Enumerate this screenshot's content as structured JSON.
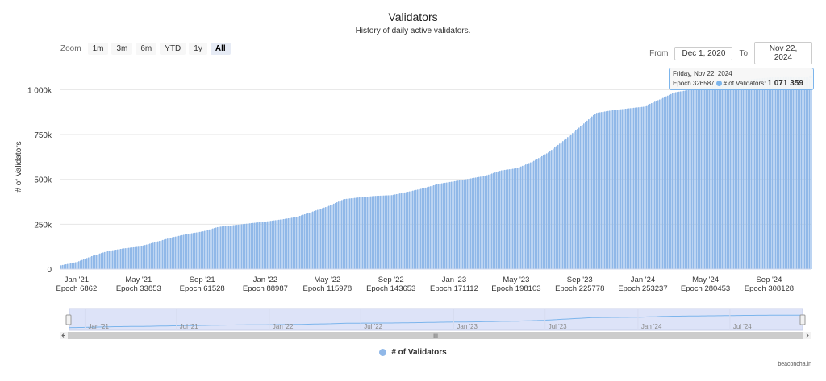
{
  "header": {
    "title": "Validators",
    "subtitle": "History of daily active validators."
  },
  "zoom": {
    "label": "Zoom",
    "buttons": [
      "1m",
      "3m",
      "6m",
      "YTD",
      "1y",
      "All"
    ],
    "active": "All"
  },
  "range": {
    "from_label": "From",
    "from_value": "Dec 1, 2020",
    "to_label": "To",
    "to_value": "Nov 22, 2024"
  },
  "tooltip": {
    "date": "Friday, Nov 22, 2024",
    "epoch": "Epoch 326587",
    "series": "# of Validators:",
    "value": "1 071 359"
  },
  "legend": {
    "label": "# of Validators"
  },
  "footer": {
    "source": "beaconcha.in"
  },
  "navigator": {
    "labels": [
      "Jan '21",
      "Jul '21",
      "Jan '22",
      "Jul '22",
      "Jan '23",
      "Jul '23",
      "Jan '24",
      "Jul '24"
    ],
    "scroll_grip": "III"
  },
  "colors": {
    "bar": "#90b8e8",
    "grid": "#e6e6e6",
    "navigator_fill": "#dde3f8",
    "tooltip_border": "#7cb5ec"
  },
  "chart_data": {
    "type": "bar",
    "title": "Validators",
    "subtitle": "History of daily active validators.",
    "ylabel": "# of Validators",
    "xlabel": "",
    "ylim": [
      0,
      1150000
    ],
    "y_ticks": [
      0,
      250000,
      500000,
      750000,
      1000000
    ],
    "y_tick_labels": [
      "0",
      "250k",
      "500k",
      "750k",
      "1 000k"
    ],
    "x_range": [
      "2020-12-01",
      "2024-11-22"
    ],
    "x_ticks": [
      {
        "date": "2021-01-01",
        "label": "Jan '21",
        "epoch": "Epoch 6862"
      },
      {
        "date": "2021-05-01",
        "label": "May '21",
        "epoch": "Epoch 33853"
      },
      {
        "date": "2021-09-01",
        "label": "Sep '21",
        "epoch": "Epoch 61528"
      },
      {
        "date": "2022-01-01",
        "label": "Jan '22",
        "epoch": "Epoch 88987"
      },
      {
        "date": "2022-05-01",
        "label": "May '22",
        "epoch": "Epoch 115978"
      },
      {
        "date": "2022-09-01",
        "label": "Sep '22",
        "epoch": "Epoch 143653"
      },
      {
        "date": "2023-01-01",
        "label": "Jan '23",
        "epoch": "Epoch 171112"
      },
      {
        "date": "2023-05-01",
        "label": "May '23",
        "epoch": "Epoch 198103"
      },
      {
        "date": "2023-09-01",
        "label": "Sep '23",
        "epoch": "Epoch 225778"
      },
      {
        "date": "2024-01-01",
        "label": "Jan '24",
        "epoch": "Epoch 253237"
      },
      {
        "date": "2024-05-01",
        "label": "May '24",
        "epoch": "Epoch 280453"
      },
      {
        "date": "2024-09-01",
        "label": "Sep '24",
        "epoch": "Epoch 308128"
      }
    ],
    "series": [
      {
        "name": "# of Validators",
        "points": [
          [
            "2020-12-01",
            21000
          ],
          [
            "2021-01-01",
            40000
          ],
          [
            "2021-02-01",
            75000
          ],
          [
            "2021-03-01",
            100000
          ],
          [
            "2021-04-01",
            115000
          ],
          [
            "2021-05-01",
            125000
          ],
          [
            "2021-06-01",
            150000
          ],
          [
            "2021-07-01",
            175000
          ],
          [
            "2021-08-01",
            195000
          ],
          [
            "2021-09-01",
            210000
          ],
          [
            "2021-10-01",
            235000
          ],
          [
            "2021-11-01",
            245000
          ],
          [
            "2021-12-01",
            255000
          ],
          [
            "2022-01-01",
            265000
          ],
          [
            "2022-02-01",
            277000
          ],
          [
            "2022-03-01",
            290000
          ],
          [
            "2022-04-01",
            320000
          ],
          [
            "2022-05-01",
            350000
          ],
          [
            "2022-06-01",
            390000
          ],
          [
            "2022-07-01",
            400000
          ],
          [
            "2022-08-01",
            408000
          ],
          [
            "2022-09-01",
            412000
          ],
          [
            "2022-10-01",
            430000
          ],
          [
            "2022-11-01",
            450000
          ],
          [
            "2022-12-01",
            475000
          ],
          [
            "2023-01-01",
            490000
          ],
          [
            "2023-02-01",
            505000
          ],
          [
            "2023-03-01",
            520000
          ],
          [
            "2023-04-01",
            550000
          ],
          [
            "2023-05-01",
            562000
          ],
          [
            "2023-06-01",
            600000
          ],
          [
            "2023-07-01",
            650000
          ],
          [
            "2023-08-01",
            720000
          ],
          [
            "2023-09-01",
            795000
          ],
          [
            "2023-10-01",
            870000
          ],
          [
            "2023-11-01",
            885000
          ],
          [
            "2023-12-01",
            895000
          ],
          [
            "2024-01-01",
            905000
          ],
          [
            "2024-02-01",
            945000
          ],
          [
            "2024-03-01",
            985000
          ],
          [
            "2024-04-01",
            1000000
          ],
          [
            "2024-05-01",
            1015000
          ],
          [
            "2024-06-01",
            1030000
          ],
          [
            "2024-07-01",
            1045000
          ],
          [
            "2024-08-01",
            1060000
          ],
          [
            "2024-09-01",
            1068000
          ],
          [
            "2024-10-01",
            1075000
          ],
          [
            "2024-11-01",
            1073000
          ],
          [
            "2024-11-22",
            1071359
          ]
        ]
      }
    ],
    "grid": true,
    "legend_position": "bottom-center"
  }
}
